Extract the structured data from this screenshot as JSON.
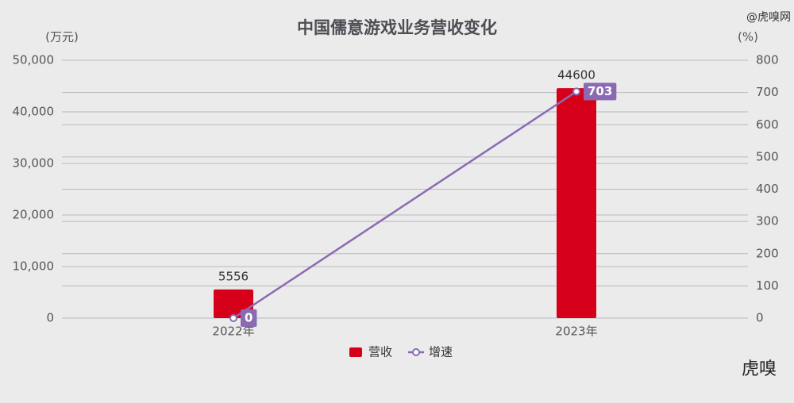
{
  "chart_data": {
    "type": "bar-line",
    "title": "中国儒意游戏业务营收变化",
    "y_label": "(万元)",
    "y2_label": "(%)",
    "watermarks": [
      "@虎嗅网",
      "虎嗅"
    ],
    "categories": [
      "2022年",
      "2023年"
    ],
    "series": [
      {
        "name": "营收",
        "type": "bar",
        "color": "#d7001a",
        "values": [
          5556,
          44600
        ]
      },
      {
        "name": "增速",
        "type": "line",
        "color": "#8a6bb3",
        "axis": "y2",
        "values": [
          0,
          703
        ]
      }
    ],
    "ylim": [
      0,
      50000
    ],
    "yticks": [
      0,
      {
        "value": 10000,
        "label": "10,000"
      },
      {
        "value": 20000,
        "label": "20,000"
      },
      {
        "value": 30000,
        "label": "30,000"
      },
      {
        "value": 40000,
        "label": "40,000"
      },
      {
        "value": 50000,
        "label": "50,000"
      }
    ],
    "y2lim": [
      0,
      800
    ],
    "y2ticks": [
      0,
      100,
      200,
      300,
      400,
      500,
      600,
      700,
      800
    ],
    "grid": true,
    "legend": "bottom"
  }
}
